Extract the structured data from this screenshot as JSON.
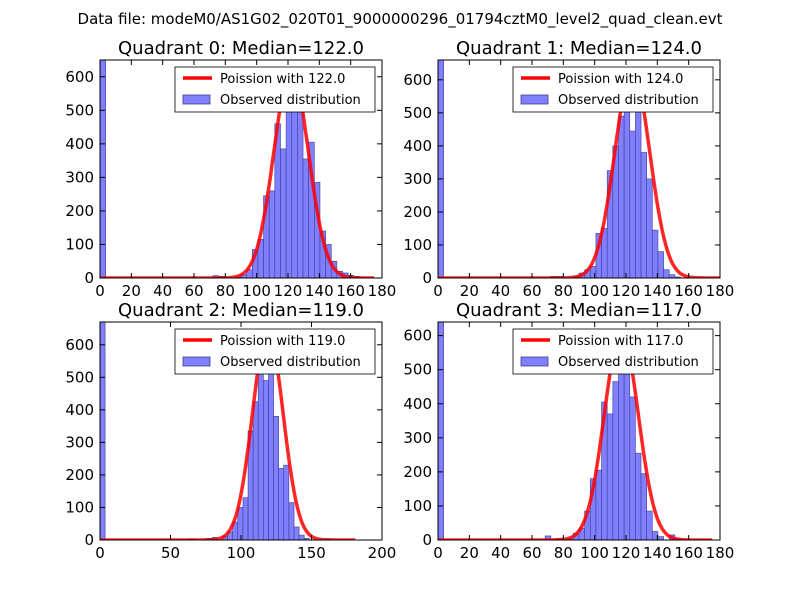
{
  "chart_data": {
    "type": "bar",
    "suptitle": "Data file: modeM0/AS1G02_020T01_9000000296_01794cztM0_level2_quad_clean.evt",
    "colors": {
      "bars": "#7f7fff",
      "bar_edge": "#3d3d8f",
      "curve": "#ff0000"
    },
    "subplots": [
      {
        "title": "Quadrant 0: Median=122.0",
        "median": 122.0,
        "legend": {
          "curve_label": "Poission with 122.0",
          "bars_label": "Observed distribution",
          "placement": "top-right"
        },
        "xlim": [
          0,
          180
        ],
        "ylim": [
          0,
          650
        ],
        "xticks": [
          0,
          20,
          40,
          60,
          80,
          100,
          120,
          140,
          160,
          180
        ],
        "yticks": [
          0,
          100,
          200,
          300,
          400,
          500,
          600
        ],
        "bin_width": 3.6,
        "bins": [
          [
            0,
            650
          ],
          [
            72,
            7
          ],
          [
            75.6,
            5
          ],
          [
            86.4,
            3
          ],
          [
            90,
            10
          ],
          [
            93.6,
            25
          ],
          [
            97.2,
            85
          ],
          [
            100.8,
            115
          ],
          [
            104.4,
            245
          ],
          [
            108,
            260
          ],
          [
            111.6,
            460
          ],
          [
            115.2,
            385
          ],
          [
            118.8,
            580
          ],
          [
            122.4,
            620
          ],
          [
            126,
            505
          ],
          [
            129.6,
            355
          ],
          [
            133.2,
            405
          ],
          [
            136.8,
            285
          ],
          [
            140.4,
            140
          ],
          [
            144,
            100
          ],
          [
            147.6,
            50
          ],
          [
            151.2,
            20
          ],
          [
            154.8,
            15
          ],
          [
            158.4,
            8
          ],
          [
            162,
            5
          ]
        ],
        "curve_peak": 620,
        "curve_xmax": 175
      },
      {
        "title": "Quadrant 1: Median=124.0",
        "median": 124.0,
        "legend": {
          "curve_label": "Poission with 124.0",
          "bars_label": "Observed distribution",
          "placement": "top-right"
        },
        "xlim": [
          0,
          180
        ],
        "ylim": [
          0,
          660
        ],
        "xticks": [
          0,
          20,
          40,
          60,
          80,
          100,
          120,
          140,
          160,
          180
        ],
        "yticks": [
          0,
          100,
          200,
          300,
          400,
          500,
          600
        ],
        "bin_width": 3.6,
        "bins": [
          [
            0,
            660
          ],
          [
            72,
            5
          ],
          [
            75.6,
            5
          ],
          [
            86.4,
            5
          ],
          [
            90,
            15
          ],
          [
            93.6,
            25
          ],
          [
            97.2,
            35
          ],
          [
            100.8,
            135
          ],
          [
            104.4,
            150
          ],
          [
            108,
            325
          ],
          [
            111.6,
            400
          ],
          [
            115.2,
            490
          ],
          [
            118.8,
            590
          ],
          [
            122.4,
            445
          ],
          [
            126,
            595
          ],
          [
            129.6,
            380
          ],
          [
            133.2,
            300
          ],
          [
            136.8,
            145
          ],
          [
            140.4,
            80
          ],
          [
            144,
            25
          ],
          [
            147.6,
            10
          ],
          [
            151.2,
            3
          ]
        ],
        "curve_peak": 630,
        "curve_xmax": 180
      },
      {
        "title": "Quadrant 2: Median=119.0",
        "median": 119.0,
        "legend": {
          "curve_label": "Poission with 119.0",
          "bars_label": "Observed distribution",
          "placement": "top-right"
        },
        "xlim": [
          0,
          200
        ],
        "ylim": [
          0,
          670
        ],
        "xticks": [
          0,
          50,
          100,
          150,
          200
        ],
        "yticks": [
          0,
          100,
          200,
          300,
          400,
          500,
          600
        ],
        "bin_width": 3.62,
        "bins": [
          [
            0,
            670
          ],
          [
            63.4,
            3
          ],
          [
            76,
            5
          ],
          [
            79.6,
            8
          ],
          [
            86.9,
            12
          ],
          [
            90.5,
            25
          ],
          [
            94.1,
            55
          ],
          [
            97.7,
            100
          ],
          [
            101.4,
            130
          ],
          [
            105,
            335
          ],
          [
            108.6,
            425
          ],
          [
            112.2,
            590
          ],
          [
            115.8,
            490
          ],
          [
            119.5,
            525
          ],
          [
            123.1,
            380
          ],
          [
            126.7,
            220
          ],
          [
            130.3,
            230
          ],
          [
            134,
            115
          ],
          [
            137.6,
            40
          ],
          [
            141.2,
            15
          ],
          [
            144.8,
            5
          ],
          [
            159.3,
            3
          ]
        ],
        "curve_peak": 640,
        "curve_xmax": 181
      },
      {
        "title": "Quadrant 3: Median=117.0",
        "median": 117.0,
        "legend": {
          "curve_label": "Poission with 117.0",
          "bars_label": "Observed distribution",
          "placement": "top-right"
        },
        "xlim": [
          0,
          180
        ],
        "ylim": [
          0,
          640
        ],
        "xticks": [
          0,
          20,
          40,
          60,
          80,
          100,
          120,
          140,
          160,
          180
        ],
        "yticks": [
          0,
          100,
          200,
          300,
          400,
          500,
          600
        ],
        "bin_width": 3.6,
        "bins": [
          [
            0,
            640
          ],
          [
            68.4,
            12
          ],
          [
            75.6,
            5
          ],
          [
            82.8,
            5
          ],
          [
            86.4,
            20
          ],
          [
            90,
            35
          ],
          [
            93.6,
            85
          ],
          [
            97.2,
            180
          ],
          [
            100.8,
            205
          ],
          [
            104.4,
            405
          ],
          [
            108,
            370
          ],
          [
            111.6,
            465
          ],
          [
            115.2,
            600
          ],
          [
            118.8,
            605
          ],
          [
            122.4,
            420
          ],
          [
            126,
            255
          ],
          [
            129.6,
            195
          ],
          [
            133.2,
            85
          ],
          [
            136.8,
            25
          ],
          [
            140.4,
            10
          ],
          [
            147.6,
            15
          ],
          [
            151.2,
            5
          ]
        ],
        "curve_peak": 610,
        "curve_xmax": 175
      }
    ]
  }
}
